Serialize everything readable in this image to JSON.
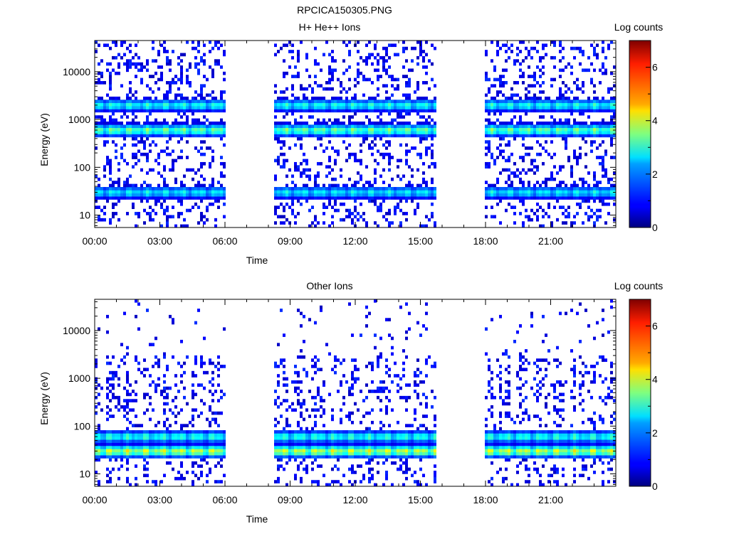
{
  "figure_title": "RPCICA150305.PNG",
  "chart_data": [
    {
      "type": "heatmap",
      "title": "H+ He++ Ions",
      "xlabel": "Time",
      "ylabel": "Energy (eV)",
      "x_tick_labels": [
        "00:00",
        "03:00",
        "06:00",
        "09:00",
        "12:00",
        "15:00",
        "18:00",
        "21:00"
      ],
      "x_ticks_hours": [
        0,
        3,
        6,
        9,
        12,
        15,
        18,
        21
      ],
      "xlim_hours": [
        0,
        24
      ],
      "y_scale": "log",
      "ylim": [
        5.5,
        45000
      ],
      "y_ticks": [
        10,
        100,
        1000,
        10000
      ],
      "y_tick_labels": [
        "10",
        "100",
        "1000",
        "10000"
      ],
      "data_gaps_hours": [
        [
          6.0,
          8.2
        ],
        [
          15.8,
          18.0
        ]
      ],
      "bands": [
        {
          "energy": 30,
          "level": 2.3
        },
        {
          "energy": 600,
          "level": 3.0
        },
        {
          "energy": 2000,
          "level": 2.5
        }
      ],
      "colorbar": {
        "label": "Log counts",
        "min": 0,
        "max": 7,
        "ticks": [
          0,
          2,
          4,
          6
        ],
        "tick_labels": [
          "0",
          "2",
          "4",
          "6"
        ]
      }
    },
    {
      "type": "heatmap",
      "title": "Other Ions",
      "xlabel": "Time",
      "ylabel": "Energy (eV)",
      "x_tick_labels": [
        "00:00",
        "03:00",
        "06:00",
        "09:00",
        "12:00",
        "15:00",
        "18:00",
        "21:00"
      ],
      "x_ticks_hours": [
        0,
        3,
        6,
        9,
        12,
        15,
        18,
        21
      ],
      "xlim_hours": [
        0,
        24
      ],
      "y_scale": "log",
      "ylim": [
        5.5,
        45000
      ],
      "y_ticks": [
        10,
        100,
        1000,
        10000
      ],
      "y_tick_labels": [
        "10",
        "100",
        "1000",
        "10000"
      ],
      "data_gaps_hours": [
        [
          6.0,
          8.2
        ],
        [
          15.8,
          18.0
        ]
      ],
      "bands": [
        {
          "energy": 30,
          "level": 3.6
        },
        {
          "energy": 60,
          "level": 2.6
        }
      ],
      "colorbar": {
        "label": "Log counts",
        "min": 0,
        "max": 7,
        "ticks": [
          0,
          2,
          4,
          6
        ],
        "tick_labels": [
          "0",
          "2",
          "4",
          "6"
        ]
      }
    }
  ]
}
